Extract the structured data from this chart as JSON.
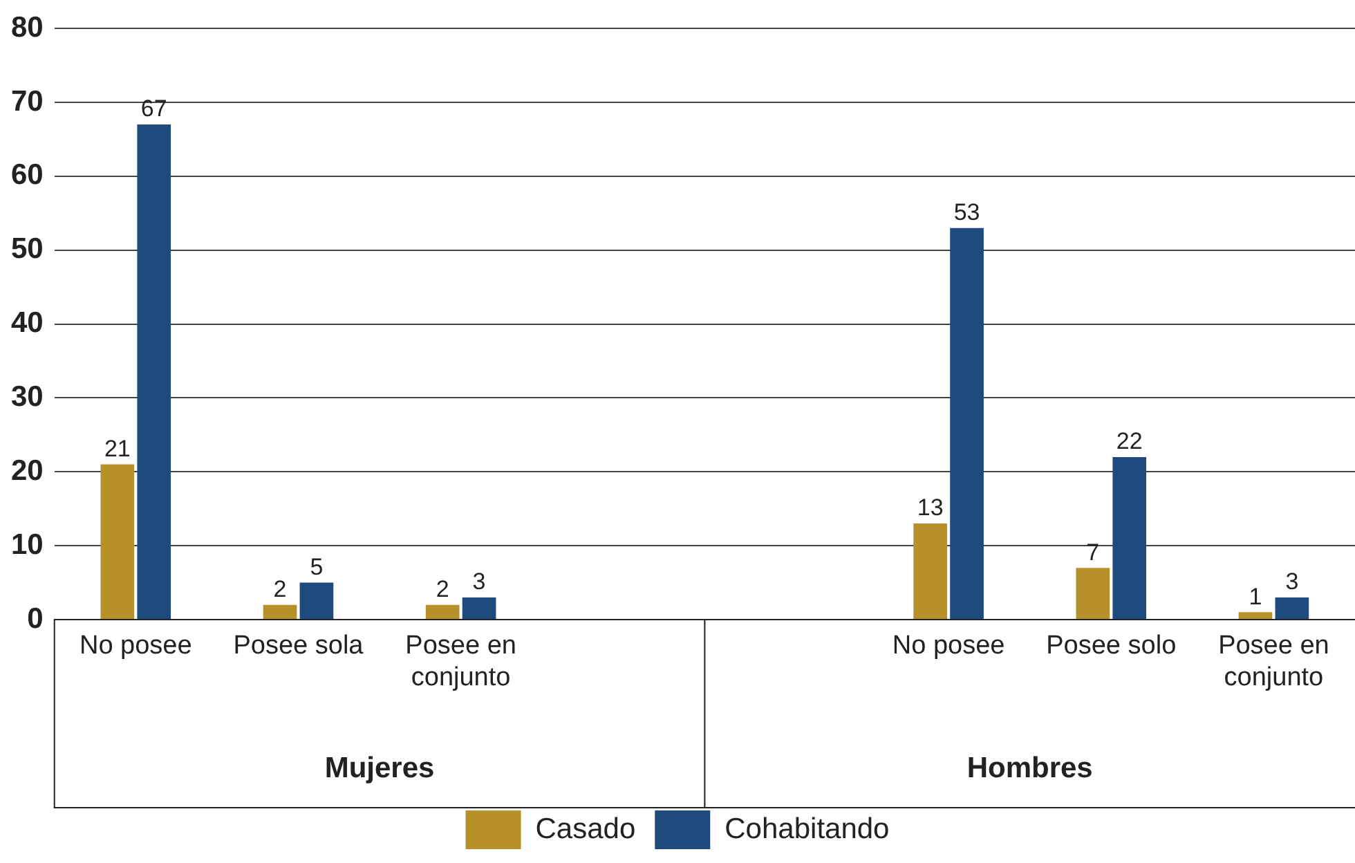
{
  "chart_data": {
    "type": "bar",
    "categories": [
      "No posee",
      "Posee sola",
      "Posee en conjunto",
      null,
      null,
      "No posee",
      "Posee solo",
      "Posee en conjunto"
    ],
    "series": [
      {
        "name": "Casado",
        "color": "#b8902a",
        "values": [
          21,
          2,
          2,
          null,
          null,
          13,
          7,
          1
        ]
      },
      {
        "name": "Cohabitando",
        "color": "#1f4a7d",
        "values": [
          67,
          5,
          3,
          null,
          null,
          53,
          22,
          3
        ]
      }
    ],
    "ylim": [
      0,
      80
    ],
    "yticks": [
      0,
      10,
      20,
      30,
      40,
      50,
      60,
      70,
      80
    ],
    "grid": "y",
    "legend": "bottom",
    "data_labels": true,
    "annotations": [
      "Mujeres",
      "Hombres"
    ]
  }
}
